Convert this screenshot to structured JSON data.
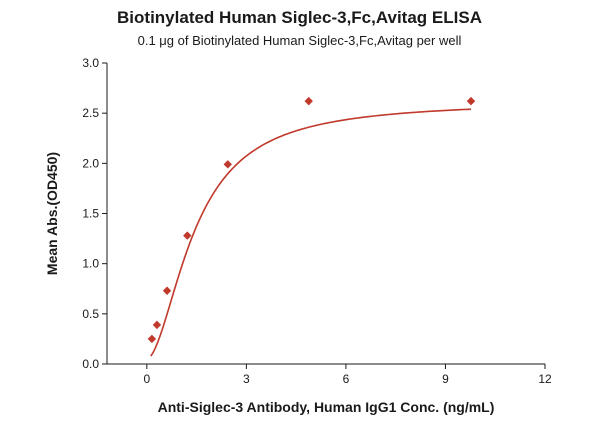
{
  "chart_data": {
    "type": "scatter",
    "title": "Biotinylated Human Siglec-3,Fc,Avitag ELISA",
    "subtitle": "0.1 μg of Biotinylated Human Siglec-3,Fc,Avitag per well",
    "xlabel": "Anti-Siglec-3 Antibody, Human IgG1 Conc. (ng/mL)",
    "ylabel": "Mean Abs.(OD450)",
    "xlim": [
      -1.2,
      12
    ],
    "ylim": [
      0,
      3.0
    ],
    "x_ticks": [
      0,
      3,
      6,
      9,
      12
    ],
    "y_ticks": [
      0.0,
      0.5,
      1.0,
      1.5,
      2.0,
      2.5,
      3.0
    ],
    "grid": false,
    "colors": {
      "series": "#c0392b"
    },
    "series": [
      {
        "x": [
          0.153,
          0.305,
          0.61,
          1.22,
          2.44,
          4.88,
          9.77
        ],
        "y": [
          0.25,
          0.39,
          0.73,
          1.28,
          1.99,
          2.62,
          2.62
        ]
      }
    ],
    "fit": {
      "type": "4PL",
      "bottom": 0.05,
      "top": 2.62,
      "ec50": 1.45,
      "hill": 1.8
    }
  }
}
